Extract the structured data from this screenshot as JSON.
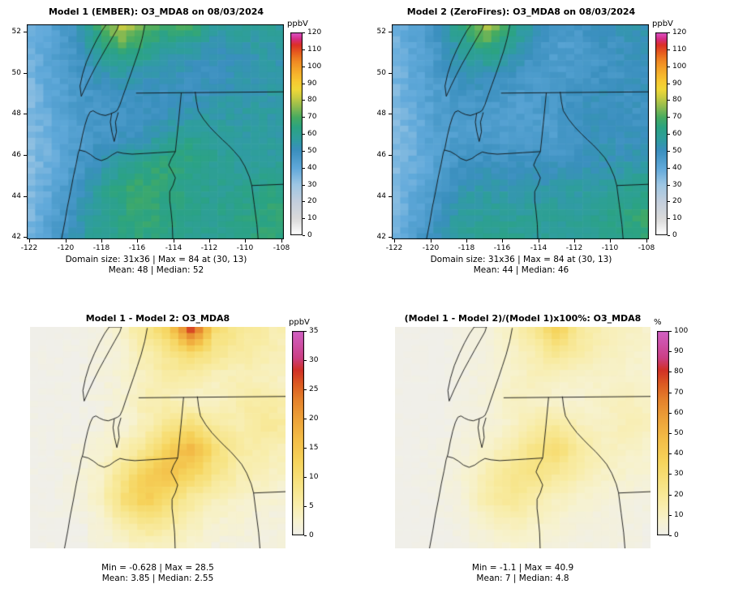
{
  "raster": {
    "cols": 31,
    "rows": 36
  },
  "scales": {
    "ozone": [
      [
        0.0,
        "#ffffff"
      ],
      [
        0.08,
        "#dadada"
      ],
      [
        0.17,
        "#c2cedd"
      ],
      [
        0.25,
        "#9cc6e4"
      ],
      [
        0.33,
        "#60a9da"
      ],
      [
        0.42,
        "#3a8fbe"
      ],
      [
        0.47,
        "#2f9da0"
      ],
      [
        0.53,
        "#2ba383"
      ],
      [
        0.58,
        "#45ab61"
      ],
      [
        0.63,
        "#8aba50"
      ],
      [
        0.68,
        "#c9cc42"
      ],
      [
        0.72,
        "#f0d838"
      ],
      [
        0.76,
        "#f7c831"
      ],
      [
        0.81,
        "#f5ab2a"
      ],
      [
        0.86,
        "#f08823"
      ],
      [
        0.9,
        "#e75e1e"
      ],
      [
        0.94,
        "#dc2f26"
      ],
      [
        0.97,
        "#d62c86"
      ],
      [
        1.0,
        "#de55c8"
      ]
    ],
    "hot": [
      [
        0.0,
        "#f0efe9"
      ],
      [
        0.07,
        "#f7f2cf"
      ],
      [
        0.15,
        "#f8edaa"
      ],
      [
        0.25,
        "#f7e383"
      ],
      [
        0.36,
        "#f6d45c"
      ],
      [
        0.47,
        "#f3bd47"
      ],
      [
        0.57,
        "#eda239"
      ],
      [
        0.66,
        "#e5832c"
      ],
      [
        0.74,
        "#dc5b21"
      ],
      [
        0.81,
        "#d13026"
      ],
      [
        0.87,
        "#cb3f85"
      ],
      [
        1.0,
        "#d160c5"
      ]
    ]
  },
  "basemap": {
    "stroke": "#111111",
    "polylines": [
      {
        "name": "pacific-coastline",
        "pts": [
          [
            0.135,
            1.0
          ],
          [
            0.148,
            0.92
          ],
          [
            0.158,
            0.85
          ],
          [
            0.17,
            0.78
          ],
          [
            0.181,
            0.71
          ],
          [
            0.192,
            0.65
          ],
          [
            0.2,
            0.6
          ],
          [
            0.207,
            0.575
          ],
          [
            0.216,
            0.52
          ],
          [
            0.226,
            0.47
          ],
          [
            0.236,
            0.432
          ],
          [
            0.246,
            0.408
          ],
          [
            0.258,
            0.402
          ],
          [
            0.272,
            0.412
          ],
          [
            0.288,
            0.42
          ],
          [
            0.306,
            0.424
          ],
          [
            0.324,
            0.417
          ],
          [
            0.342,
            0.408
          ],
          [
            0.352,
            0.4
          ],
          [
            0.362,
            0.375
          ],
          [
            0.375,
            0.33
          ],
          [
            0.39,
            0.28
          ],
          [
            0.405,
            0.23
          ],
          [
            0.42,
            0.178
          ],
          [
            0.435,
            0.125
          ],
          [
            0.449,
            0.065
          ],
          [
            0.459,
            0.005
          ]
        ]
      },
      {
        "name": "puget-sound",
        "pts": [
          [
            0.33,
            0.415
          ],
          [
            0.325,
            0.455
          ],
          [
            0.331,
            0.5
          ],
          [
            0.34,
            0.545
          ],
          [
            0.349,
            0.5
          ],
          [
            0.345,
            0.455
          ],
          [
            0.356,
            0.41
          ]
        ]
      },
      {
        "name": "vancouver-island",
        "pts": [
          [
            0.212,
            0.335
          ],
          [
            0.231,
            0.285
          ],
          [
            0.251,
            0.236
          ],
          [
            0.271,
            0.19
          ],
          [
            0.291,
            0.148
          ],
          [
            0.312,
            0.104
          ],
          [
            0.332,
            0.063
          ],
          [
            0.352,
            0.022
          ],
          [
            0.358,
            0.0
          ],
          [
            0.31,
            0.0
          ],
          [
            0.292,
            0.03
          ],
          [
            0.272,
            0.072
          ],
          [
            0.252,
            0.12
          ],
          [
            0.232,
            0.175
          ],
          [
            0.217,
            0.232
          ],
          [
            0.207,
            0.287
          ],
          [
            0.212,
            0.335
          ]
        ]
      },
      {
        "name": "us-canada-border",
        "pts": [
          [
            0.425,
            0.32
          ],
          [
            1.0,
            0.314
          ]
        ]
      },
      {
        "name": "wa-or-border",
        "pts": [
          [
            0.205,
            0.585
          ],
          [
            0.228,
            0.592
          ],
          [
            0.248,
            0.606
          ],
          [
            0.268,
            0.624
          ],
          [
            0.29,
            0.634
          ],
          [
            0.312,
            0.624
          ],
          [
            0.332,
            0.607
          ],
          [
            0.352,
            0.594
          ],
          [
            0.375,
            0.6
          ],
          [
            0.41,
            0.604
          ],
          [
            0.455,
            0.601
          ],
          [
            0.51,
            0.597
          ],
          [
            0.578,
            0.592
          ]
        ]
      },
      {
        "name": "wa-id-border",
        "pts": [
          [
            0.601,
            0.318
          ],
          [
            0.59,
            0.455
          ],
          [
            0.578,
            0.592
          ]
        ]
      },
      {
        "name": "or-id-border",
        "pts": [
          [
            0.578,
            0.592
          ],
          [
            0.562,
            0.625
          ],
          [
            0.552,
            0.655
          ],
          [
            0.566,
            0.685
          ],
          [
            0.578,
            0.714
          ],
          [
            0.569,
            0.748
          ],
          [
            0.556,
            0.778
          ],
          [
            0.556,
            0.82
          ],
          [
            0.561,
            0.868
          ],
          [
            0.566,
            0.93
          ],
          [
            0.568,
            1.0
          ]
        ]
      },
      {
        "name": "id-mt-border",
        "pts": [
          [
            0.655,
            0.314
          ],
          [
            0.66,
            0.36
          ],
          [
            0.667,
            0.402
          ],
          [
            0.688,
            0.442
          ],
          [
            0.712,
            0.478
          ],
          [
            0.738,
            0.51
          ],
          [
            0.762,
            0.538
          ],
          [
            0.784,
            0.562
          ],
          [
            0.806,
            0.59
          ],
          [
            0.828,
            0.62
          ],
          [
            0.848,
            0.66
          ],
          [
            0.866,
            0.71
          ],
          [
            0.875,
            0.75
          ]
        ]
      },
      {
        "name": "id-wy-border",
        "pts": [
          [
            0.875,
            0.75
          ],
          [
            0.885,
            0.84
          ],
          [
            0.895,
            0.93
          ],
          [
            0.9,
            1.0
          ]
        ]
      },
      {
        "name": "mt-wy-border",
        "pts": [
          [
            0.875,
            0.75
          ],
          [
            1.0,
            0.744
          ]
        ]
      }
    ]
  },
  "chart_data": [
    {
      "id": "model1-map",
      "type": "heatmap",
      "title": "Model 1 (EMBER): O3_MDA8 on 08/03/2024",
      "unit": "ppbV",
      "zlim": [
        0,
        120
      ],
      "colorbar_ticks": [
        0,
        10,
        20,
        30,
        40,
        50,
        60,
        70,
        80,
        90,
        100,
        110,
        120
      ],
      "x_ticks": [
        -122,
        -120,
        -118,
        -116,
        -114,
        -112,
        -110,
        -108
      ],
      "y_ticks": [
        42,
        44,
        46,
        48,
        50,
        52
      ],
      "x_range": [
        -122.15,
        -107.85
      ],
      "y_range": [
        41.9,
        52.35
      ],
      "frame": true,
      "scale": "ozone",
      "noise": 2.5,
      "seed": 1,
      "caption1": "Domain size: 31x36 | Max = 84 at (30, 13)",
      "caption2": "Mean: 48 |  Median: 52",
      "grid": [
        [
          36,
          42,
          50,
          66,
          84,
          74,
          68,
          72,
          58,
          60,
          58,
          58
        ],
        [
          36,
          42,
          48,
          58,
          68,
          64,
          58,
          56,
          52,
          54,
          55,
          55
        ],
        [
          35,
          41,
          46,
          52,
          55,
          54,
          52,
          51,
          50,
          52,
          53,
          54
        ],
        [
          34,
          40,
          45,
          48,
          50,
          50,
          48,
          50,
          52,
          55,
          55,
          55
        ],
        [
          33,
          39,
          44,
          46,
          47,
          48,
          52,
          56,
          56,
          56,
          56,
          55
        ],
        [
          33,
          38,
          44,
          48,
          50,
          54,
          60,
          62,
          59,
          57,
          56,
          56
        ],
        [
          33,
          38,
          45,
          52,
          58,
          64,
          66,
          63,
          60,
          58,
          58,
          60
        ],
        [
          34,
          40,
          48,
          56,
          66,
          68,
          64,
          62,
          60,
          60,
          62,
          64
        ],
        [
          34,
          42,
          50,
          58,
          63,
          66,
          64,
          62,
          60,
          62,
          64,
          68
        ],
        [
          35,
          44,
          52,
          60,
          62,
          64,
          62,
          60,
          60,
          62,
          64,
          66
        ]
      ]
    },
    {
      "id": "model2-map",
      "type": "heatmap",
      "title": "Model 2 (ZeroFires): O3_MDA8 on 08/03/2024",
      "unit": "ppbV",
      "zlim": [
        0,
        120
      ],
      "colorbar_ticks": [
        0,
        10,
        20,
        30,
        40,
        50,
        60,
        70,
        80,
        90,
        100,
        110,
        120
      ],
      "x_ticks": [
        -122,
        -120,
        -118,
        -116,
        -114,
        -112,
        -110,
        -108
      ],
      "y_ticks": [
        42,
        44,
        46,
        48,
        50,
        52
      ],
      "x_range": [
        -122.15,
        -107.85
      ],
      "y_range": [
        41.9,
        52.35
      ],
      "frame": true,
      "scale": "ozone",
      "noise": 2.5,
      "seed": 2,
      "caption1": "Domain size: 31x36 | Max = 84 at (30, 13)",
      "caption2": "Mean: 44 |  Median: 46",
      "grid": [
        [
          36,
          42,
          50,
          65,
          80,
          66,
          54,
          46,
          48,
          52,
          52,
          54
        ],
        [
          36,
          42,
          48,
          57,
          66,
          59,
          50,
          44,
          44,
          48,
          50,
          51
        ],
        [
          35,
          41,
          46,
          51,
          53,
          50,
          46,
          46,
          46,
          48,
          49,
          51
        ],
        [
          34,
          40,
          45,
          47,
          48,
          45,
          44,
          47,
          49,
          50,
          49,
          50
        ],
        [
          33,
          39,
          44,
          45,
          45,
          44,
          44,
          46,
          50,
          51,
          49,
          49
        ],
        [
          33,
          38,
          43,
          46,
          46,
          46,
          46,
          44,
          49,
          51,
          51,
          52
        ],
        [
          33,
          38,
          44,
          49,
          50,
          50,
          50,
          51,
          52,
          53,
          54,
          57
        ],
        [
          34,
          40,
          47,
          53,
          56,
          54,
          54,
          56,
          56,
          57,
          60,
          62
        ],
        [
          34,
          42,
          50,
          56,
          58,
          58,
          58,
          58,
          58,
          60,
          63,
          67
        ],
        [
          35,
          44,
          52,
          59,
          60,
          61,
          59,
          58,
          59,
          61,
          63,
          65
        ]
      ]
    },
    {
      "id": "difference-map",
      "type": "heatmap",
      "title": "Model 1 - Model 2: O3_MDA8",
      "unit": "ppbV",
      "zlim": [
        0,
        35
      ],
      "colorbar_ticks": [
        0,
        5,
        10,
        15,
        20,
        25,
        30,
        35
      ],
      "frame": false,
      "scale": "hot",
      "noise": 0.6,
      "seed": 3,
      "caption1": "Min = -0.628 | Max = 28.5",
      "caption2": "Mean: 3.85 |  Median: 2.55",
      "grid": [
        [
          0,
          0,
          0,
          1,
          3,
          8,
          14,
          30,
          10,
          8,
          6,
          4
        ],
        [
          0,
          0,
          0,
          1,
          2,
          5,
          8,
          12,
          8,
          6,
          5,
          4
        ],
        [
          0,
          0,
          0,
          1,
          2,
          4,
          6,
          5,
          4,
          4,
          4,
          3
        ],
        [
          0,
          0,
          0,
          1,
          2,
          5,
          4,
          3,
          3,
          5,
          6,
          5
        ],
        [
          0,
          0,
          0,
          1,
          2,
          4,
          8,
          10,
          6,
          5,
          7,
          6
        ],
        [
          0,
          0,
          1,
          2,
          4,
          8,
          14,
          18,
          10,
          6,
          5,
          4
        ],
        [
          0,
          0,
          1,
          3,
          8,
          14,
          16,
          12,
          8,
          5,
          4,
          3
        ],
        [
          0,
          0,
          1,
          3,
          10,
          14,
          10,
          6,
          4,
          3,
          2,
          2
        ],
        [
          0,
          0,
          0,
          2,
          5,
          8,
          6,
          4,
          2,
          2,
          1,
          1
        ],
        [
          0,
          0,
          0,
          1,
          2,
          3,
          3,
          2,
          1,
          1,
          1,
          1
        ]
      ]
    },
    {
      "id": "percent-difference-map",
      "type": "heatmap",
      "title": "(Model 1 - Model 2)/(Model 1)x100%: O3_MDA8",
      "unit": "%",
      "zlim": [
        0,
        100
      ],
      "colorbar_ticks": [
        0,
        10,
        20,
        30,
        40,
        50,
        60,
        70,
        80,
        90,
        100
      ],
      "frame": false,
      "scale": "hot",
      "noise": 1.2,
      "seed": 4,
      "caption1": "Min = -1.1 | Max = 40.9",
      "caption2": "Mean: 7 |  Median: 4.8",
      "grid": [
        [
          0,
          0,
          0,
          2,
          4,
          11,
          21,
          40,
          17,
          13,
          10,
          7
        ],
        [
          0,
          0,
          0,
          2,
          3,
          8,
          14,
          23,
          16,
          12,
          9,
          7
        ],
        [
          0,
          0,
          0,
          2,
          4,
          7,
          12,
          10,
          8,
          8,
          8,
          6
        ],
        [
          0,
          0,
          0,
          2,
          4,
          10,
          8,
          6,
          6,
          9,
          11,
          9
        ],
        [
          0,
          0,
          0,
          2,
          4,
          8,
          16,
          19,
          11,
          9,
          13,
          11
        ],
        [
          0,
          0,
          2,
          4,
          8,
          15,
          25,
          31,
          17,
          11,
          9,
          7
        ],
        [
          0,
          0,
          2,
          6,
          14,
          23,
          25,
          19,
          13,
          9,
          7,
          5
        ],
        [
          0,
          0,
          2,
          5,
          16,
          21,
          15,
          10,
          7,
          5,
          3,
          3
        ],
        [
          0,
          0,
          0,
          3,
          8,
          12,
          9,
          6,
          3,
          3,
          2,
          1
        ],
        [
          0,
          0,
          0,
          2,
          3,
          5,
          5,
          3,
          2,
          2,
          2,
          1
        ]
      ]
    }
  ]
}
